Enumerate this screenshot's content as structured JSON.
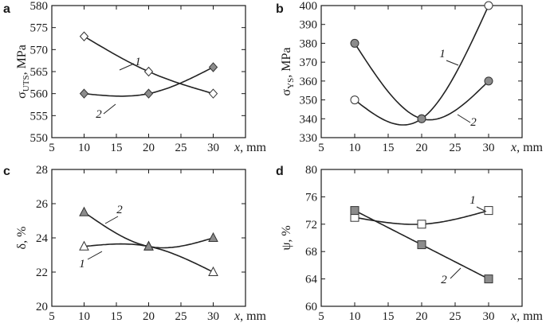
{
  "chart_data": [
    {
      "panel": "a",
      "type": "line",
      "xlabel": "x, mm",
      "ylabel": {
        "base": "σ",
        "sub": "UTS",
        "unit": ", MPa"
      },
      "xlim": [
        5,
        35
      ],
      "ylim": [
        550,
        580
      ],
      "xticks": [
        5,
        10,
        15,
        20,
        25,
        30,
        35
      ],
      "yticks": [
        550,
        555,
        560,
        565,
        570,
        575,
        580
      ],
      "x": [
        10,
        20,
        30
      ],
      "series": [
        {
          "name": "1",
          "values": [
            573,
            565,
            560
          ],
          "marker": "diamond",
          "fill": "#ffffff"
        },
        {
          "name": "2",
          "values": [
            560,
            560,
            566
          ],
          "marker": "diamond",
          "fill": "#8c8c8c"
        }
      ]
    },
    {
      "panel": "b",
      "type": "line",
      "xlabel": "x, mm",
      "ylabel": {
        "base": "σ",
        "sub": "YS",
        "unit": ", MPa"
      },
      "xlim": [
        5,
        35
      ],
      "ylim": [
        330,
        400
      ],
      "xticks": [
        5,
        10,
        15,
        20,
        25,
        30,
        35
      ],
      "yticks": [
        330,
        340,
        350,
        360,
        370,
        380,
        390,
        400
      ],
      "x": [
        10,
        20,
        30
      ],
      "series": [
        {
          "name": "1",
          "values": [
            350,
            340,
            400
          ],
          "marker": "circle",
          "fill": "#ffffff"
        },
        {
          "name": "2",
          "values": [
            380,
            340,
            360
          ],
          "marker": "circle",
          "fill": "#8c8c8c"
        }
      ]
    },
    {
      "panel": "c",
      "type": "line",
      "xlabel": "x, mm",
      "ylabel": {
        "base": "δ",
        "sub": "",
        "unit": ", %"
      },
      "xlim": [
        5,
        35
      ],
      "ylim": [
        20,
        28
      ],
      "xticks": [
        5,
        10,
        15,
        20,
        25,
        30,
        35
      ],
      "yticks": [
        20,
        22,
        24,
        26,
        28
      ],
      "x": [
        10,
        20,
        30
      ],
      "series": [
        {
          "name": "1",
          "values": [
            23.5,
            23.5,
            22
          ],
          "marker": "triangle",
          "fill": "#ffffff"
        },
        {
          "name": "2",
          "values": [
            25.5,
            23.5,
            24
          ],
          "marker": "triangle",
          "fill": "#8c8c8c"
        }
      ]
    },
    {
      "panel": "d",
      "type": "line",
      "xlabel": "x, mm",
      "ylabel": {
        "base": "ψ",
        "sub": "",
        "unit": ", %"
      },
      "xlim": [
        5,
        35
      ],
      "ylim": [
        60,
        80
      ],
      "xticks": [
        5,
        10,
        15,
        20,
        25,
        30,
        35
      ],
      "yticks": [
        60,
        64,
        68,
        72,
        76,
        80
      ],
      "x": [
        10,
        20,
        30
      ],
      "series": [
        {
          "name": "1",
          "values": [
            73,
            72,
            74
          ],
          "marker": "square",
          "fill": "#ffffff"
        },
        {
          "name": "2",
          "values": [
            74,
            69,
            64
          ],
          "marker": "square",
          "fill": "#8c8c8c"
        }
      ]
    }
  ]
}
